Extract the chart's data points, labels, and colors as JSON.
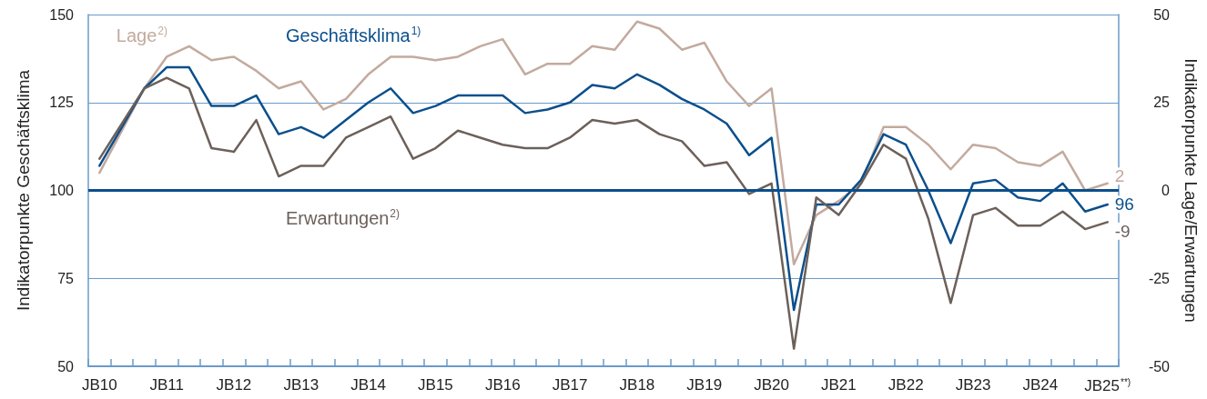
{
  "chart_data": {
    "type": "line",
    "ylabel": "Indikatorpunkte Geschäftsklima",
    "y2label": "Indikatorpunkte Lage/Erwartungen",
    "categories": [
      "JB10",
      null,
      null,
      "JB11",
      null,
      null,
      "JB12",
      null,
      null,
      "JB13",
      null,
      null,
      "JB14",
      null,
      null,
      "JB15",
      null,
      null,
      "JB16",
      null,
      null,
      "JB17",
      null,
      null,
      "JB18",
      null,
      null,
      "JB19",
      null,
      null,
      "JB20",
      null,
      null,
      "JB21",
      null,
      null,
      "JB22",
      null,
      null,
      "JB23",
      null,
      null,
      "JB24",
      null,
      null,
      "JB25$^{**)}$"
    ],
    "series": [
      {
        "name": "Lage$^{2)}$",
        "color": "#c3aa9e",
        "axis": "y2",
        "values": [
          5,
          17,
          29,
          38,
          41,
          37,
          38,
          34,
          29,
          31,
          23,
          26,
          33,
          38,
          38,
          37,
          38,
          41,
          43,
          33,
          36,
          36,
          41,
          40,
          48,
          46,
          40,
          42,
          31,
          24,
          29,
          -21,
          -7,
          -3,
          2,
          18,
          18,
          13,
          6,
          13,
          12,
          8,
          7,
          11,
          0,
          2
        ],
        "value_labels": [
          null,
          null,
          null,
          null,
          null,
          null,
          null,
          null,
          null,
          null,
          null,
          null,
          null,
          null,
          null,
          null,
          null,
          null,
          null,
          null,
          null,
          null,
          null,
          null,
          null,
          null,
          null,
          null,
          null,
          null,
          null,
          null,
          null,
          null,
          null,
          null,
          null,
          null,
          null,
          null,
          null,
          null,
          null,
          null,
          null,
          "2"
        ]
      },
      {
        "name": "Geschäftsklima$^{1)}$",
        "color": "#0b4f8c",
        "values": [
          107,
          118,
          129,
          135,
          135,
          124,
          124,
          127,
          116,
          118,
          115,
          120,
          125,
          129,
          122,
          124,
          127,
          127,
          127,
          122,
          123,
          125,
          130,
          129,
          133,
          130,
          126,
          123,
          119,
          110,
          115,
          66,
          96,
          96,
          103,
          116,
          113,
          100,
          85,
          102,
          103,
          98,
          97,
          102,
          94,
          96
        ],
        "value_labels": [
          null,
          null,
          null,
          null,
          null,
          null,
          null,
          null,
          null,
          null,
          null,
          null,
          null,
          null,
          null,
          null,
          null,
          null,
          null,
          null,
          null,
          null,
          null,
          null,
          null,
          null,
          null,
          null,
          null,
          null,
          null,
          null,
          null,
          null,
          null,
          null,
          null,
          null,
          null,
          null,
          null,
          null,
          null,
          null,
          null,
          "96"
        ]
      },
      {
        "name": "Erwartungen$^{2)}$",
        "color": "#6c605a",
        "axis": "y2",
        "values": [
          9,
          19,
          29,
          32,
          29,
          12,
          11,
          20,
          4,
          7,
          7,
          15,
          18,
          21,
          9,
          12,
          17,
          15,
          13,
          12,
          12,
          15,
          20,
          19,
          20,
          16,
          14,
          7,
          8,
          -1,
          2,
          -45,
          -2,
          -7,
          2,
          13,
          9,
          -8,
          -32,
          -7,
          -5,
          -10,
          -10,
          -6,
          -11,
          -9
        ],
        "value_labels": [
          null,
          null,
          null,
          null,
          null,
          null,
          null,
          null,
          null,
          null,
          null,
          null,
          null,
          null,
          null,
          null,
          null,
          null,
          null,
          null,
          null,
          null,
          null,
          null,
          null,
          null,
          null,
          null,
          null,
          null,
          null,
          null,
          null,
          null,
          null,
          null,
          null,
          null,
          null,
          null,
          null,
          null,
          null,
          null,
          null,
          "-9"
        ]
      }
    ],
    "ylim": [
      50,
      150
    ],
    "yticks": [
      50,
      75,
      100,
      125,
      150
    ],
    "y2lim": [
      -50,
      50
    ],
    "y2ticks": [
      -50,
      -25,
      0,
      25,
      50
    ],
    "ref_lines": [
      {
        "axis": "y",
        "value": 100,
        "color": "#0b4f8c"
      }
    ],
    "grid": "y",
    "marker": "none",
    "line_style": "solid"
  }
}
